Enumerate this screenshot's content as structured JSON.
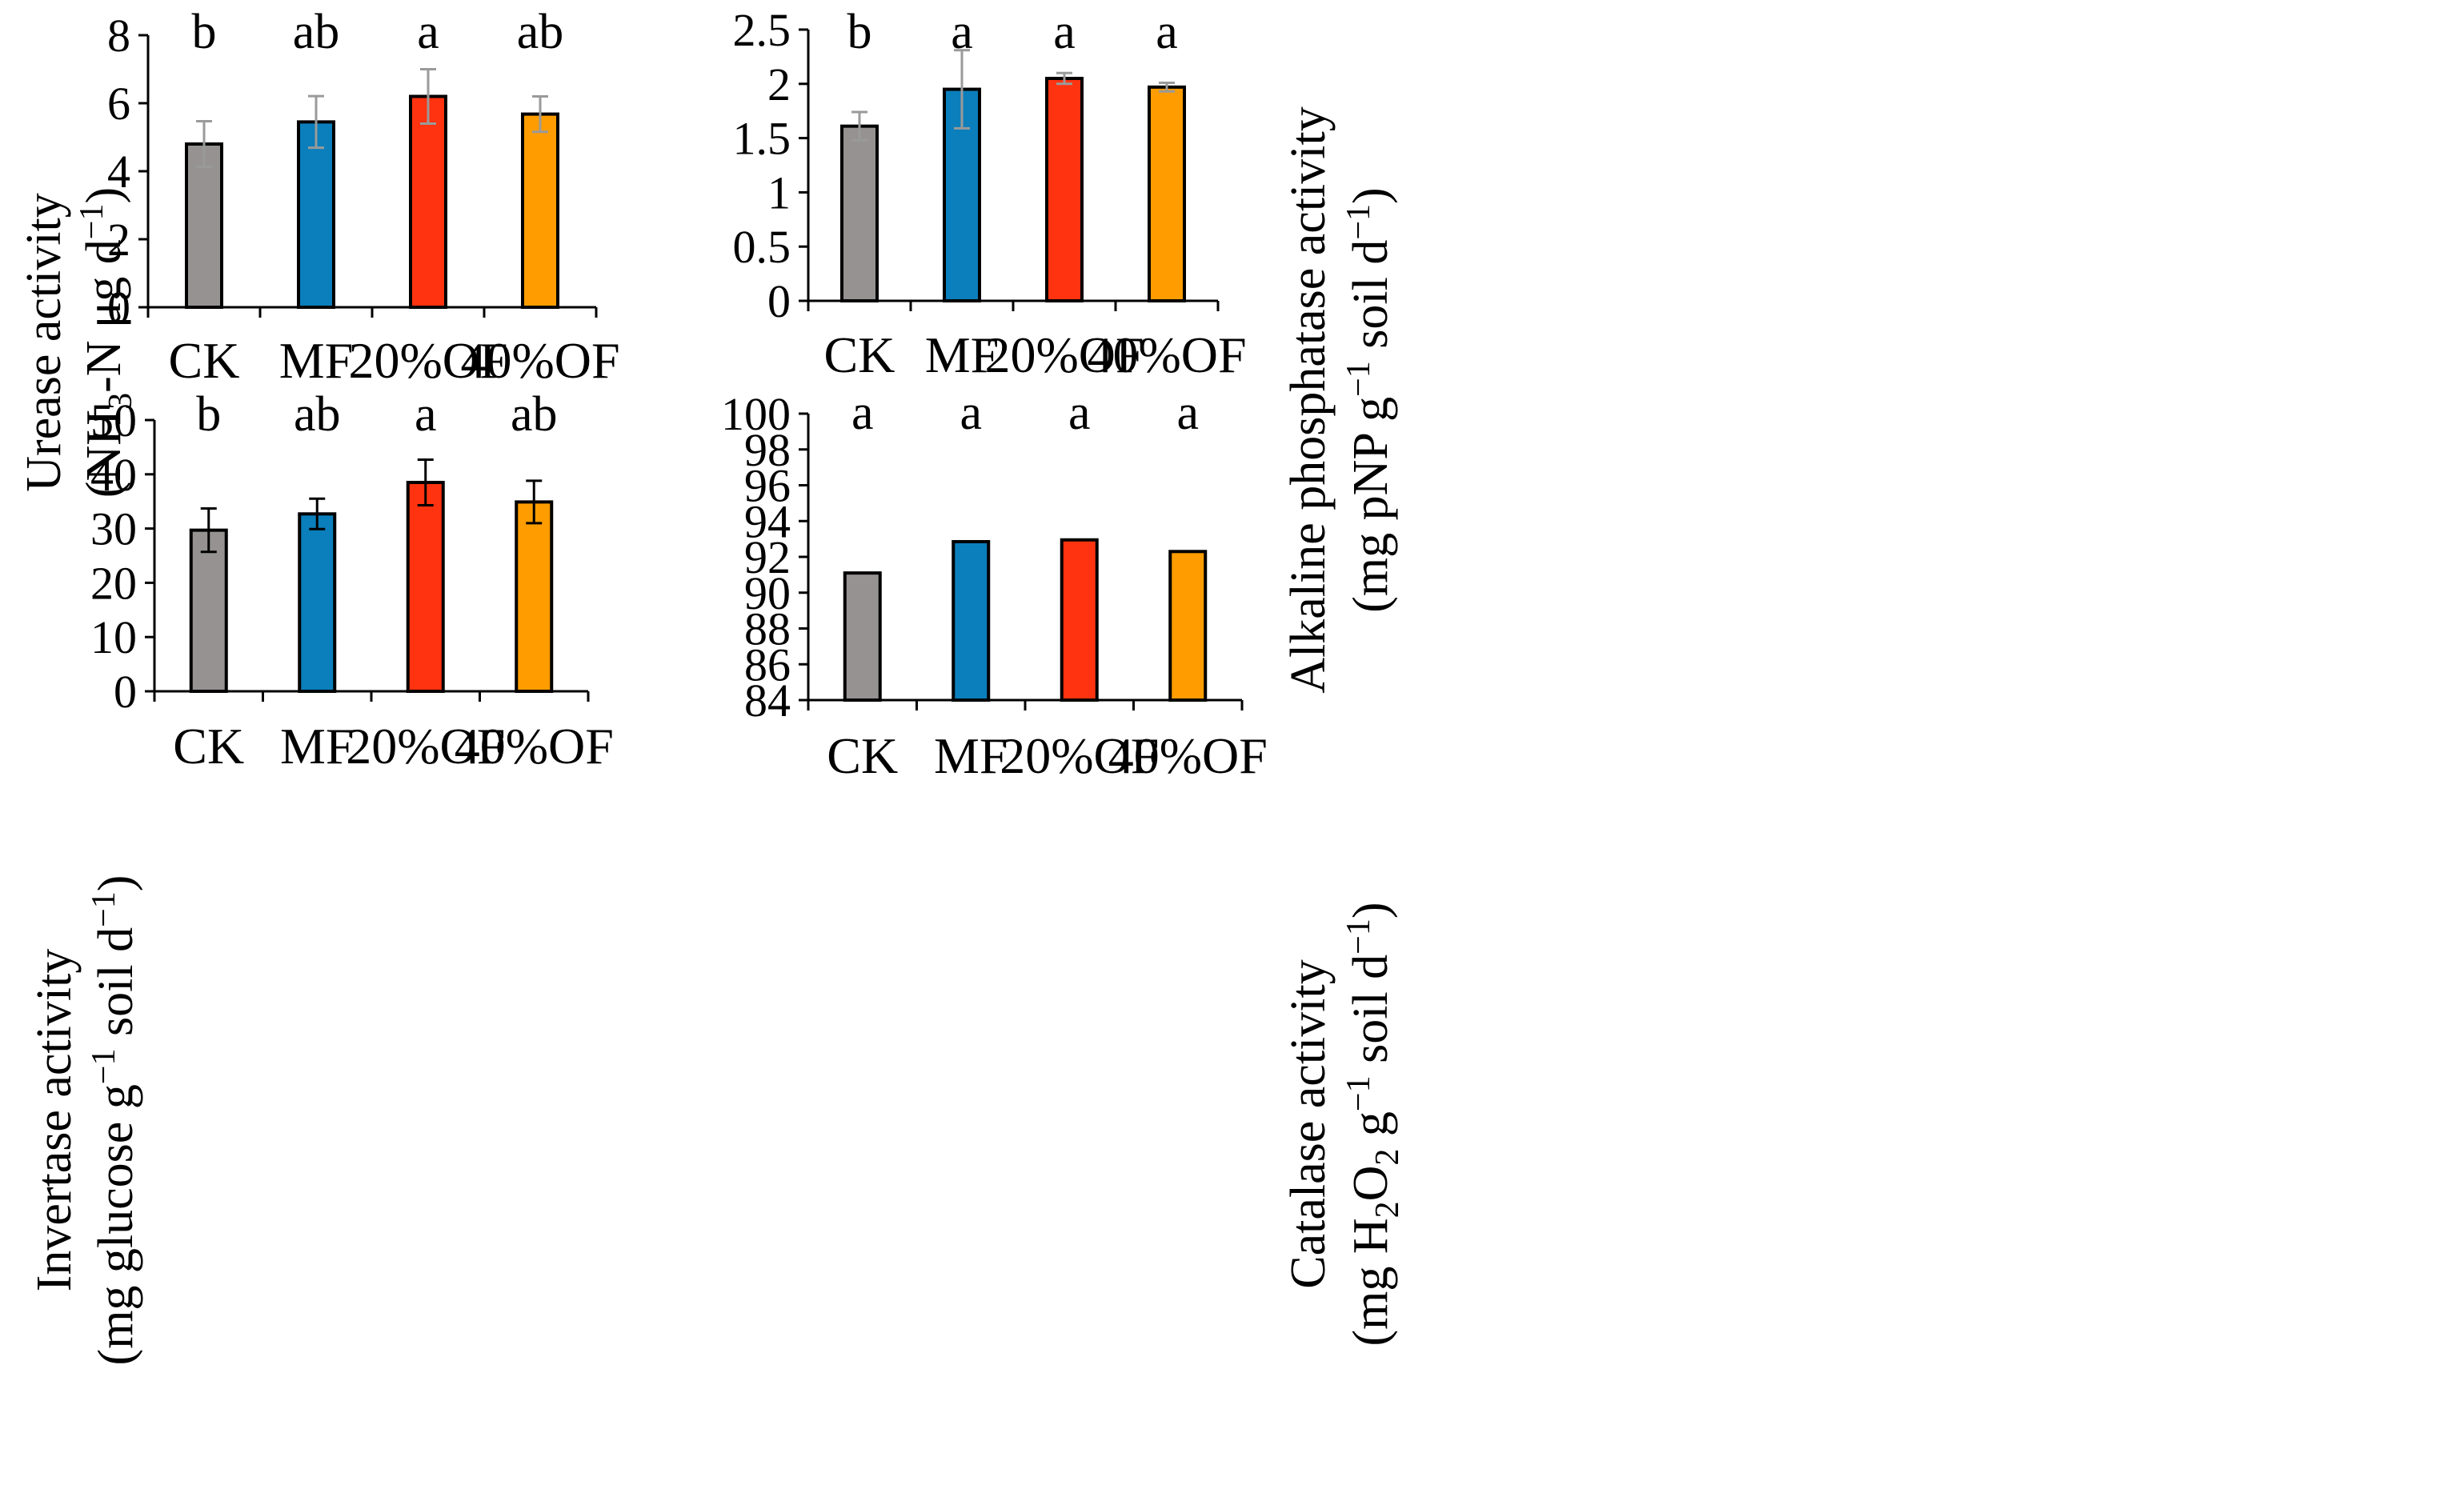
{
  "colors": {
    "CK": "#969292",
    "MF": "#0a7fbb",
    "20%OF": "#ff3310",
    "40%OF": "#ff9d00"
  },
  "chart_data": [
    {
      "type": "bar",
      "panel": "top-left",
      "categories": [
        "CK",
        "MF",
        "20%OF",
        "40%OF"
      ],
      "values": [
        4.8,
        5.45,
        6.2,
        5.68
      ],
      "errors": [
        0.67,
        0.76,
        0.8,
        0.52
      ],
      "error_color": "#9a9a9a",
      "significance": [
        "b",
        "ab",
        "a",
        "ab"
      ],
      "ylabel": {
        "line1": "Urease activity",
        "line2_pre": "(NH",
        "line2_sub": "3",
        "line2_mid": "-N μg d",
        "line2_sup": "−1",
        "line2_post": ")"
      },
      "ylim": [
        0,
        8
      ],
      "yticks": [
        0,
        2,
        4,
        6,
        8
      ],
      "ytick_labels": [
        "0",
        "2",
        "4",
        "6",
        "8"
      ]
    },
    {
      "type": "bar",
      "panel": "top-right",
      "categories": [
        "CK",
        "MF",
        "20%OF",
        "40%OF"
      ],
      "values": [
        1.61,
        1.95,
        2.05,
        1.97
      ],
      "errors": [
        0.13,
        0.36,
        0.05,
        0.04
      ],
      "error_color": "#9a9a9a",
      "significance": [
        "b",
        "a",
        "a",
        "a"
      ],
      "ylabel": {
        "line1": "Alkaline phosphatase activity",
        "line2_pre": "(mg pNP g",
        "line2_sup": "−1",
        "line2_post": " soil d",
        "line2_sup2": "−1",
        "line2_end": ")"
      },
      "ylim": [
        0,
        2.5
      ],
      "yticks": [
        0,
        0.5,
        1,
        1.5,
        2,
        2.5
      ],
      "ytick_labels": [
        "0",
        "0.5",
        "1",
        "1.5",
        "2",
        "2.5"
      ]
    },
    {
      "type": "bar",
      "panel": "bottom-left",
      "categories": [
        "CK",
        "MF",
        "20%OF",
        "40%OF"
      ],
      "values": [
        29.7,
        32.7,
        38.5,
        34.9
      ],
      "errors": [
        4.0,
        2.8,
        4.2,
        3.9
      ],
      "error_color": "#000000",
      "significance": [
        "b",
        "ab",
        "a",
        "ab"
      ],
      "ylabel": {
        "line1": "Invertase activity",
        "line2_pre": "(mg glucose g",
        "line2_sup": "−1",
        "line2_post": " soil d",
        "line2_sup2": "−1",
        "line2_end": ")"
      },
      "ylim": [
        0,
        50
      ],
      "yticks": [
        0,
        10,
        20,
        30,
        40,
        50
      ],
      "ytick_labels": [
        "0",
        "10",
        "20",
        "30",
        "40",
        "50"
      ]
    },
    {
      "type": "bar",
      "panel": "bottom-right",
      "categories": [
        "CK",
        "MF",
        "20%OF",
        "40%OF"
      ],
      "values": [
        91.1,
        92.85,
        92.95,
        92.3
      ],
      "errors": [
        0,
        0,
        0,
        0
      ],
      "error_color": "#000000",
      "significance": [
        "a",
        "a",
        "a",
        "a"
      ],
      "ylabel": {
        "line1": "Catalase activity",
        "line2_pre": "(mg H",
        "line2_sub": "2",
        "line2_mid": "O",
        "line2_sub2": "2",
        "line2_mid2": " g",
        "line2_sup": "−1",
        "line2_post": " soil d",
        "line2_sup2": "−1",
        "line2_end": ")"
      },
      "ylim": [
        84,
        100
      ],
      "yticks": [
        84,
        86,
        88,
        90,
        92,
        94,
        96,
        98,
        100
      ],
      "ytick_labels": [
        "84",
        "86",
        "88",
        "90",
        "92",
        "94",
        "96",
        "98",
        "100"
      ]
    }
  ]
}
